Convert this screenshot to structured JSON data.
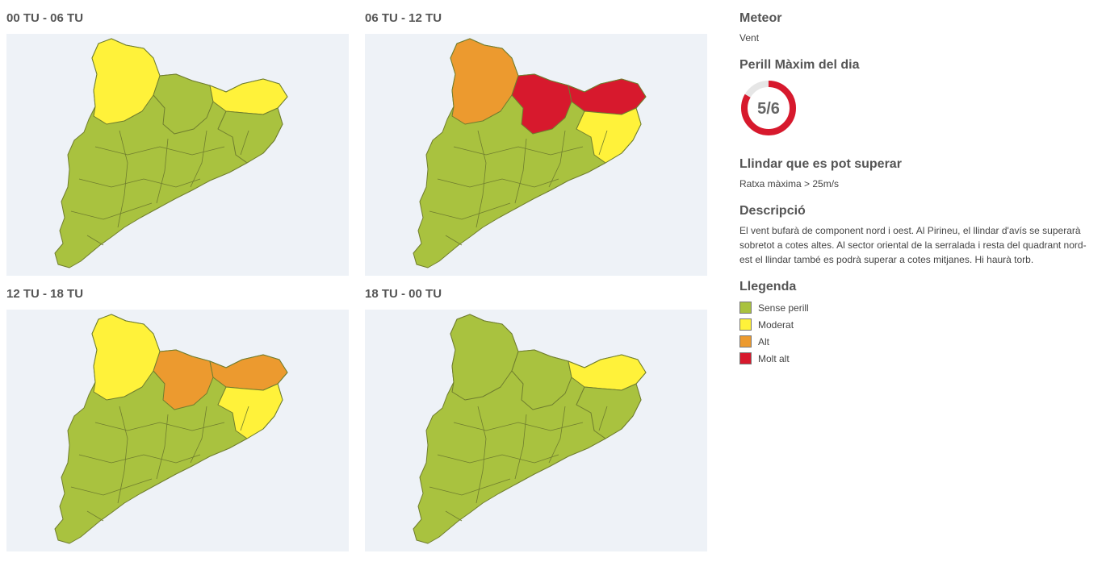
{
  "panels": [
    {
      "title": "00 TU - 06 TU",
      "top": "yellow",
      "ne": "yellow",
      "e": "green",
      "centre": "green"
    },
    {
      "title": "06 TU - 12 TU",
      "top": "orange",
      "ne": "red",
      "e": "yellow",
      "centre": "red"
    },
    {
      "title": "12 TU - 18 TU",
      "top": "yellow",
      "ne": "orange",
      "e": "yellow",
      "centre": "orange"
    },
    {
      "title": "18 TU - 00 TU",
      "top": "green",
      "ne": "yellow",
      "e": "green",
      "centre": "green"
    }
  ],
  "side": {
    "meteor_title": "Meteor",
    "meteor_value": "Vent",
    "max_title": "Perill Màxim del dia",
    "max_value": "5/6",
    "max_level": 5,
    "max_total": 6,
    "threshold_title": "Llindar que es pot superar",
    "threshold_value": "Ratxa màxima > 25m/s",
    "desc_title": "Descripció",
    "desc_text": "El vent bufarà de component nord i oest. Al Pirineu, el llindar d'avís se superarà sobretot a cotes altes. Al sector oriental de la serralada i resta del quadrant nord-est el llindar també es podrà superar a cotes mitjanes. Hi haurà torb.",
    "legend_title": "Llegenda",
    "legend": [
      {
        "label": "Sense perill",
        "color": "#a9c23f"
      },
      {
        "label": "Moderat",
        "color": "#fff23a"
      },
      {
        "label": "Alt",
        "color": "#ec9a2f"
      },
      {
        "label": "Molt alt",
        "color": "#d7192d"
      }
    ]
  },
  "colors": {
    "green": "#a9c23f",
    "yellow": "#fff23a",
    "orange": "#ec9a2f",
    "red": "#d7192d",
    "gauge_track": "#e6e6e6",
    "gauge_fill": "#d7192d",
    "map_bg": "#eef2f7"
  }
}
